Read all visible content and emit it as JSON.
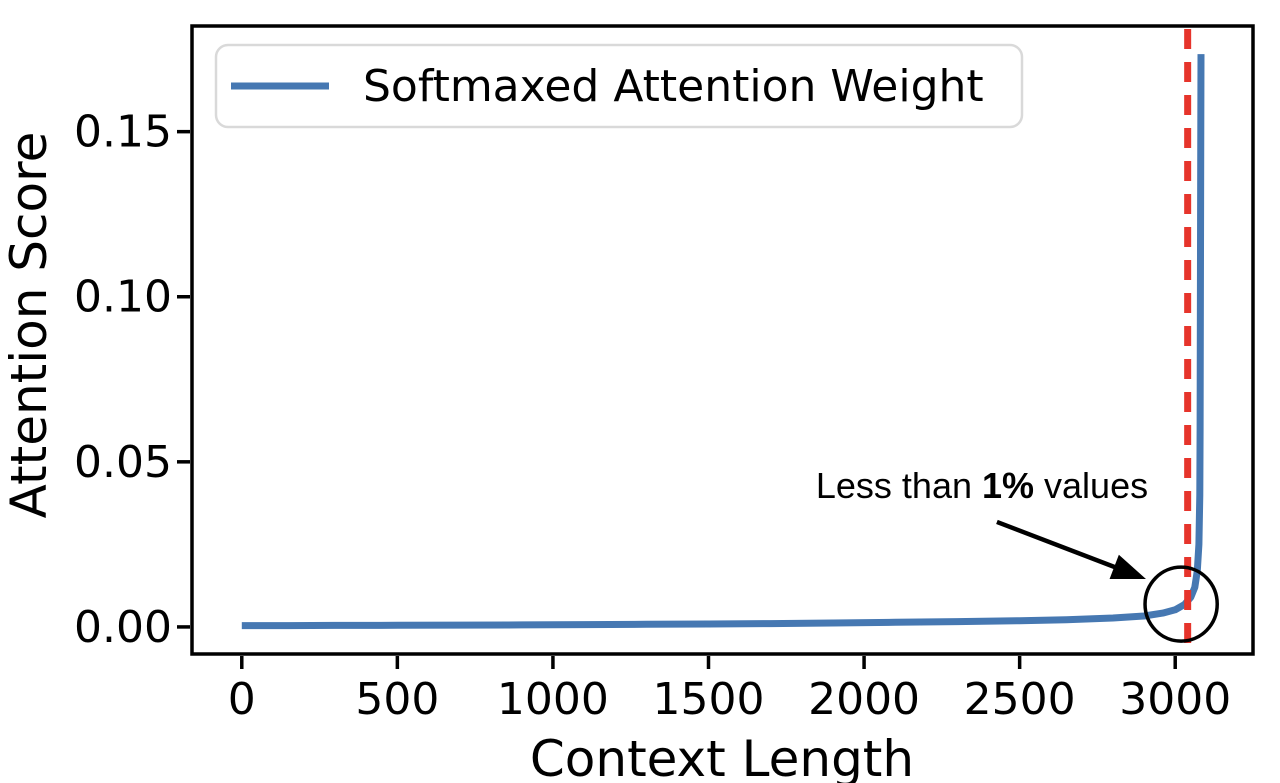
{
  "chart_data": {
    "type": "line",
    "title": "",
    "xlabel": "Context Length",
    "ylabel": "Attention Score",
    "xlim": [
      -160,
      3250
    ],
    "ylim": [
      -0.0082,
      0.182
    ],
    "xtick_values": [
      0,
      500,
      1000,
      1500,
      2000,
      2500,
      3000
    ],
    "xtick_labels": [
      "0",
      "500",
      "1000",
      "1500",
      "2000",
      "2500",
      "3000"
    ],
    "ytick_values": [
      0.0,
      0.05,
      0.1,
      0.15
    ],
    "ytick_labels": [
      "0.00",
      "0.05",
      "0.10",
      "0.15"
    ],
    "grid": false,
    "legend": {
      "position": "upper left",
      "entries": [
        {
          "label": "Softmaxed Attention Weight",
          "color": "#4678b2"
        }
      ]
    },
    "series": [
      {
        "name": "Softmaxed Attention Weight",
        "color": "#4678b2",
        "line_width": 7,
        "points": [
          [
            0,
            0.0004
          ],
          [
            150,
            0.0004
          ],
          [
            300,
            0.00045
          ],
          [
            500,
            0.0005
          ],
          [
            700,
            0.00055
          ],
          [
            900,
            0.0006
          ],
          [
            1100,
            0.0007
          ],
          [
            1300,
            0.0008
          ],
          [
            1500,
            0.0009
          ],
          [
            1700,
            0.001
          ],
          [
            1900,
            0.0012
          ],
          [
            2100,
            0.0014
          ],
          [
            2300,
            0.0016
          ],
          [
            2500,
            0.0019
          ],
          [
            2650,
            0.0022
          ],
          [
            2800,
            0.0027
          ],
          [
            2900,
            0.0033
          ],
          [
            2960,
            0.0042
          ],
          [
            3000,
            0.0052
          ],
          [
            3030,
            0.0068
          ],
          [
            3050,
            0.009
          ],
          [
            3063,
            0.012
          ],
          [
            3071,
            0.017
          ],
          [
            3076,
            0.025
          ],
          [
            3079,
            0.04
          ],
          [
            3080,
            0.06
          ],
          [
            3081,
            0.1
          ],
          [
            3082,
            0.14
          ],
          [
            3083,
            0.1735
          ]
        ]
      }
    ],
    "vline": {
      "x": 3040,
      "color": "#e6342b",
      "style": "dashed",
      "width": 7
    },
    "annotation": {
      "text_full": "Less than 1% values",
      "text_prefix": "Less than ",
      "text_bold": "1%",
      "text_suffix": " values",
      "color": "#000000",
      "text_anchor": {
        "x": 2379,
        "y": 0.039
      },
      "arrow": {
        "start": [
          2427,
          0.0318
        ],
        "end": [
          2906,
          0.0145
        ]
      },
      "circle": {
        "cx": 3019,
        "cy": 0.0069,
        "rx": 116,
        "ry": 0.0112
      }
    },
    "colors": {
      "frame": "#000000",
      "background": "#ffffff",
      "legend_border": "#d9d9d9"
    }
  }
}
